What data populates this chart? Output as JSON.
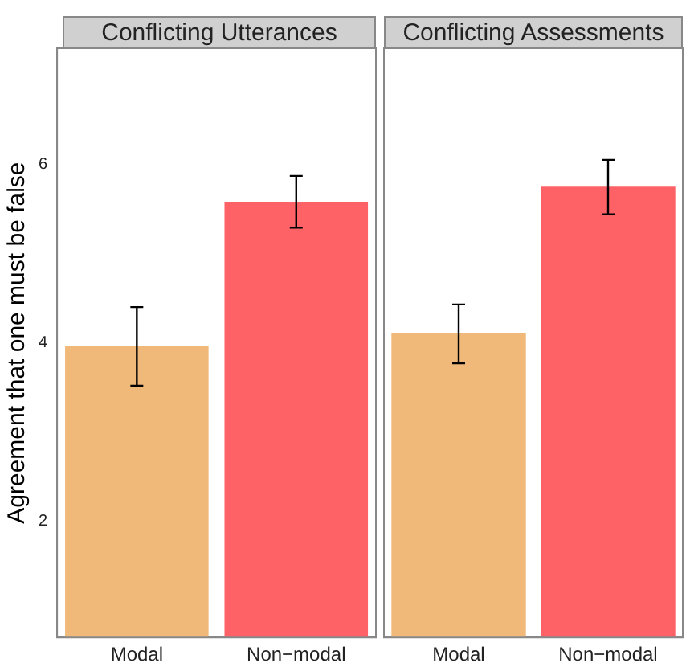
{
  "chart_data": [
    {
      "type": "bar",
      "title": "Conflicting Utterances",
      "ylabel": "Agreement that one must be false",
      "categories": [
        "Modal",
        "Non−modal"
      ],
      "values": [
        3.96,
        5.58
      ],
      "colors": [
        "#f0b97a",
        "#fe6267"
      ],
      "errors": [
        [
          3.52,
          4.4
        ],
        [
          5.29,
          5.87
        ]
      ],
      "ylim": [
        0.7,
        7.3
      ],
      "yticks": [
        2,
        4,
        6
      ],
      "grid": false,
      "legend": false
    },
    {
      "type": "bar",
      "title": "Conflicting Assessments",
      "categories": [
        "Modal",
        "Non−modal"
      ],
      "values": [
        4.11,
        5.75
      ],
      "colors": [
        "#f0b97a",
        "#fe6267"
      ],
      "errors": [
        [
          3.77,
          4.43
        ],
        [
          5.44,
          6.05
        ]
      ],
      "ylim": [
        0.7,
        7.3
      ],
      "yticks": [
        2,
        4,
        6
      ],
      "grid": false,
      "legend": false,
      "tick_labels": "x"
    }
  ]
}
